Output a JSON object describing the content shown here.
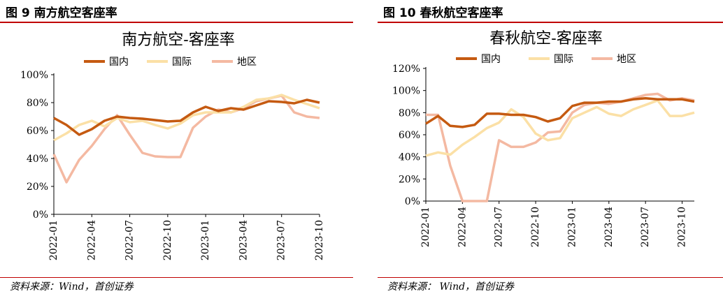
{
  "figures": [
    {
      "caption": "图 9  南方航空客座率",
      "source": "资料来源：Wind，首创证券"
    },
    {
      "caption": "图 10  春秋航空客座率",
      "source": "资料来源：  Wind，首创证券"
    }
  ],
  "colors": {
    "domestic": "#C55A11",
    "international": "#FBE0A6",
    "regional": "#F4B9A2",
    "accent": "#C00000"
  },
  "chart_data": [
    {
      "type": "line",
      "title": "南方航空-客座率",
      "legend": "top",
      "ylim": [
        0,
        100
      ],
      "yticks": [
        "0%",
        "20%",
        "40%",
        "60%",
        "80%",
        "100%"
      ],
      "x": [
        "2022-01",
        "2022-02",
        "2022-03",
        "2022-04",
        "2022-05",
        "2022-06",
        "2022-07",
        "2022-08",
        "2022-09",
        "2022-10",
        "2022-11",
        "2022-12",
        "2023-01",
        "2023-02",
        "2023-03",
        "2023-04",
        "2023-05",
        "2023-06",
        "2023-07",
        "2023-08",
        "2023-09",
        "2023-10"
      ],
      "xticks": [
        "2022-01",
        "2022-04",
        "2022-07",
        "2022-10",
        "2023-01",
        "2023-04",
        "2023-07",
        "2023-10"
      ],
      "series": [
        {
          "name": "国内",
          "values": [
            69,
            64,
            57,
            61,
            67,
            70,
            69,
            68.5,
            67.5,
            66.5,
            67,
            73,
            77,
            74,
            76,
            75,
            78,
            81,
            80.5,
            79.5,
            82,
            80
          ]
        },
        {
          "name": "国际",
          "values": [
            53,
            58,
            64,
            67,
            63,
            69,
            66,
            67,
            64,
            61.5,
            65,
            71,
            73,
            73,
            73,
            77,
            82,
            83,
            85.5,
            82,
            79,
            76
          ]
        },
        {
          "name": "地区",
          "values": [
            43,
            23,
            39,
            49,
            61,
            71,
            57,
            44,
            41.5,
            41,
            41,
            62,
            70,
            75,
            73,
            76,
            81,
            83,
            85,
            73,
            70,
            69
          ]
        }
      ]
    },
    {
      "type": "line",
      "title": "春秋航空-客座率",
      "legend": "top",
      "ylim": [
        0,
        120
      ],
      "yticks": [
        "0%",
        "20%",
        "40%",
        "60%",
        "80%",
        "100%",
        "120%"
      ],
      "x": [
        "2022-01",
        "2022-02",
        "2022-03",
        "2022-04",
        "2022-05",
        "2022-06",
        "2022-07",
        "2022-08",
        "2022-09",
        "2022-10",
        "2022-11",
        "2022-12",
        "2023-01",
        "2023-02",
        "2023-03",
        "2023-04",
        "2023-05",
        "2023-06",
        "2023-07",
        "2023-08",
        "2023-09",
        "2023-10",
        "2023-11"
      ],
      "xticks": [
        "2022-01",
        "2022-04",
        "2022-07",
        "2022-10",
        "2023-01",
        "2023-04",
        "2023-07",
        "2023-10"
      ],
      "series": [
        {
          "name": "国内",
          "values": [
            70,
            77,
            68,
            67,
            69,
            79,
            79,
            78,
            78,
            76,
            72,
            75,
            86,
            89,
            89,
            90,
            90,
            92,
            93,
            92,
            92,
            92,
            90
          ]
        },
        {
          "name": "国际",
          "values": [
            41,
            44,
            42,
            51,
            58,
            66,
            71,
            83,
            76,
            61,
            55,
            57,
            75,
            80,
            85,
            79,
            77,
            83,
            87,
            91,
            77,
            77,
            80
          ]
        },
        {
          "name": "地区",
          "values": [
            78,
            78,
            32,
            0,
            0,
            0,
            55,
            49,
            49,
            53,
            62,
            63,
            80,
            87,
            89,
            88,
            90,
            93,
            96,
            97,
            91,
            93,
            91
          ]
        }
      ]
    }
  ]
}
